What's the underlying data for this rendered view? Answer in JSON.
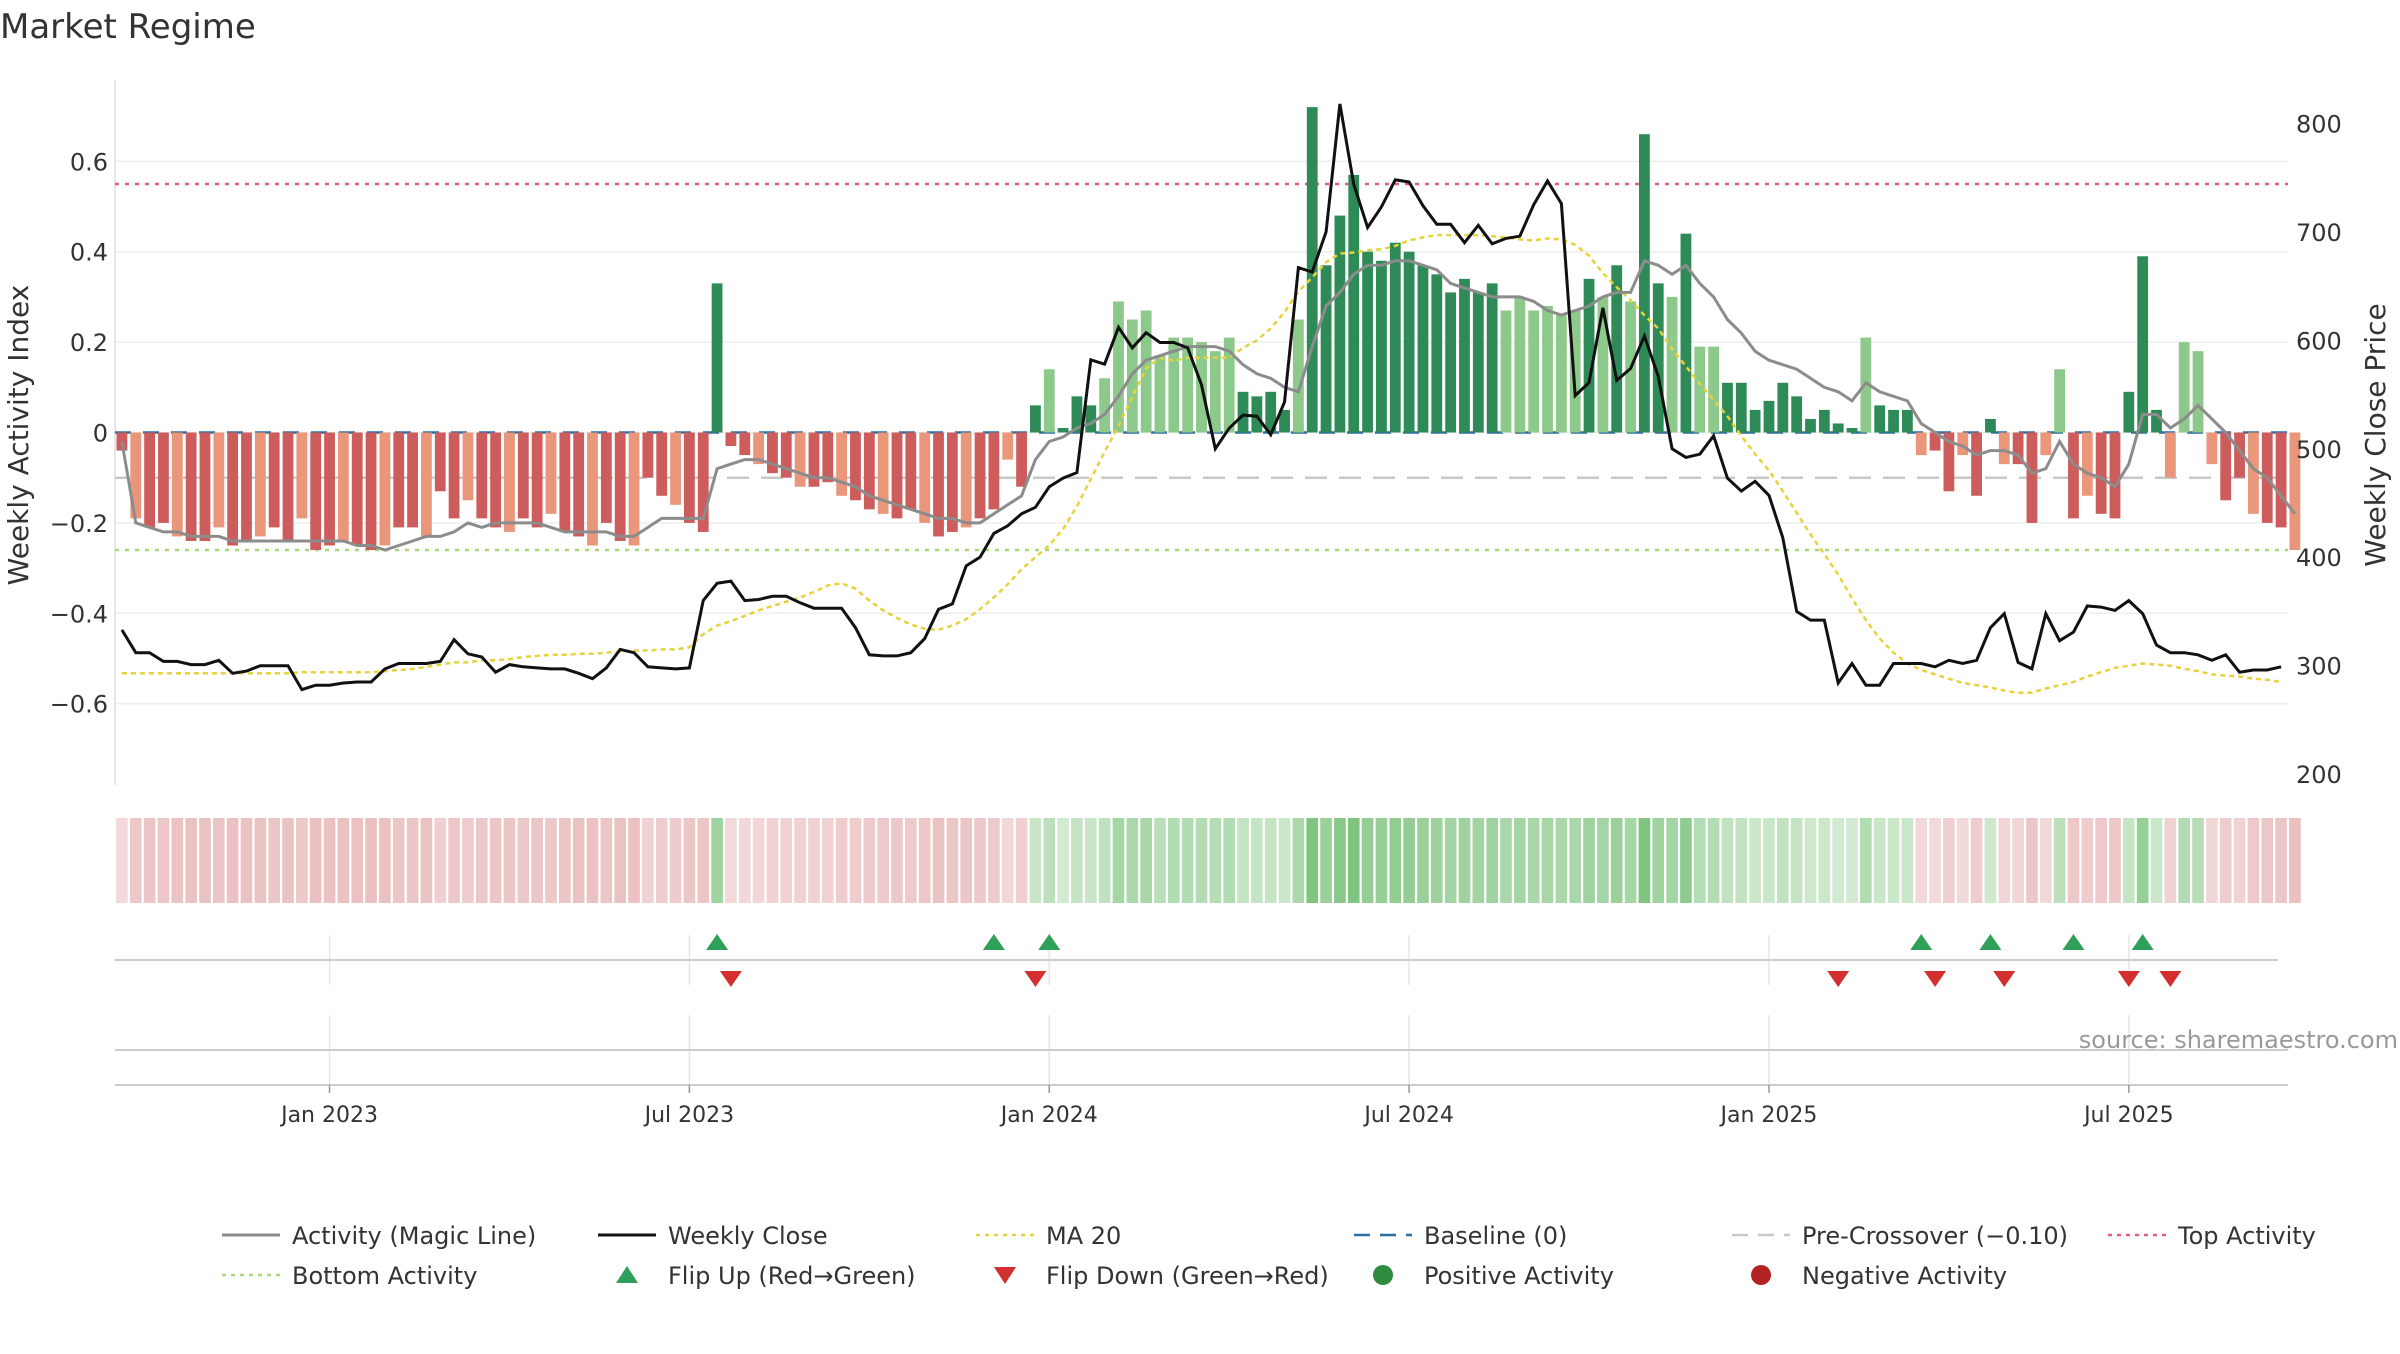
{
  "chart_data": {
    "type": "bar",
    "title": "Market Regime",
    "ylabel_left": "Weekly Activity Index",
    "ylabel_right": "Weekly Close Price",
    "source": "source: sharemaestro.com",
    "left_axis": {
      "ylim": [
        -0.78,
        0.78
      ],
      "ticks": [
        -0.6,
        -0.4,
        -0.2,
        0,
        0.2,
        0.4,
        0.6
      ],
      "tick_labels": [
        "−0.6",
        "−0.4",
        "−0.2",
        "0",
        "0.2",
        "0.4",
        "0.6"
      ]
    },
    "right_axis": {
      "ylim": [
        190,
        840
      ],
      "ticks": [
        200,
        300,
        400,
        500,
        600,
        700,
        800
      ],
      "tick_labels": [
        "200",
        "300",
        "400",
        "500",
        "600",
        "700",
        "800"
      ]
    },
    "x_ticks": [
      {
        "label": "Jan 2023",
        "week": 15
      },
      {
        "label": "Jul 2023",
        "week": 41
      },
      {
        "label": "Jan 2024",
        "week": 67
      },
      {
        "label": "Jul 2024",
        "week": 93
      },
      {
        "label": "Jan 2025",
        "week": 119
      },
      {
        "label": "Jul 2025",
        "week": 145
      }
    ],
    "week_count": 157,
    "reference_lines": {
      "top_activity": 0.55,
      "bottom_activity": -0.26,
      "pre_crossover": -0.1,
      "baseline": 0
    },
    "activity_bars": [
      -0.04,
      -0.19,
      -0.21,
      -0.2,
      -0.23,
      -0.24,
      -0.24,
      -0.21,
      -0.25,
      -0.24,
      -0.23,
      -0.21,
      -0.24,
      -0.19,
      -0.26,
      -0.25,
      -0.24,
      -0.25,
      -0.26,
      -0.25,
      -0.21,
      -0.21,
      -0.23,
      -0.13,
      -0.19,
      -0.15,
      -0.19,
      -0.21,
      -0.22,
      -0.19,
      -0.21,
      -0.18,
      -0.22,
      -0.23,
      -0.25,
      -0.2,
      -0.24,
      -0.25,
      -0.1,
      -0.14,
      -0.16,
      -0.2,
      -0.22,
      0.33,
      -0.03,
      -0.05,
      -0.07,
      -0.09,
      -0.1,
      -0.12,
      -0.12,
      -0.11,
      -0.14,
      -0.15,
      -0.17,
      -0.18,
      -0.19,
      -0.17,
      -0.2,
      -0.23,
      -0.22,
      -0.21,
      -0.19,
      -0.17,
      -0.06,
      -0.12,
      0.06,
      0.14,
      0.01,
      0.08,
      0.06,
      0.12,
      0.29,
      0.25,
      0.27,
      0.17,
      0.21,
      0.21,
      0.2,
      0.18,
      0.21,
      0.09,
      0.08,
      0.09,
      0.05,
      0.25,
      0.72,
      0.37,
      0.48,
      0.57,
      0.4,
      0.38,
      0.42,
      0.4,
      0.37,
      0.35,
      0.31,
      0.34,
      0.31,
      0.33,
      0.27,
      0.3,
      0.27,
      0.28,
      0.26,
      0.27,
      0.34,
      0.3,
      0.37,
      0.29,
      0.66,
      0.33,
      0.3,
      0.44,
      0.19,
      0.19,
      0.11,
      0.11,
      0.05,
      0.07,
      0.11,
      0.08,
      0.03,
      0.05,
      0.02,
      0.01,
      0.21,
      0.06,
      0.05,
      0.05,
      -0.05,
      -0.04,
      -0.13,
      -0.05,
      -0.14,
      0.03,
      -0.07,
      -0.07,
      -0.2,
      -0.05,
      0.14,
      -0.19,
      -0.14,
      -0.18,
      -0.19,
      0.09,
      0.39,
      0.05,
      -0.1,
      0.2,
      0.18,
      -0.07,
      -0.15,
      -0.1,
      -0.18,
      -0.2,
      -0.21,
      -0.26
    ],
    "magic_line": [
      -0.02,
      -0.2,
      -0.21,
      -0.22,
      -0.22,
      -0.23,
      -0.23,
      -0.23,
      -0.24,
      -0.24,
      -0.24,
      -0.24,
      -0.24,
      -0.24,
      -0.24,
      -0.24,
      -0.24,
      -0.25,
      -0.25,
      -0.26,
      -0.25,
      -0.24,
      -0.23,
      -0.23,
      -0.22,
      -0.2,
      -0.21,
      -0.2,
      -0.2,
      -0.2,
      -0.2,
      -0.21,
      -0.22,
      -0.22,
      -0.22,
      -0.22,
      -0.23,
      -0.23,
      -0.21,
      -0.19,
      -0.19,
      -0.19,
      -0.19,
      -0.08,
      -0.07,
      -0.06,
      -0.06,
      -0.07,
      -0.08,
      -0.09,
      -0.1,
      -0.1,
      -0.11,
      -0.12,
      -0.14,
      -0.15,
      -0.16,
      -0.17,
      -0.18,
      -0.19,
      -0.19,
      -0.2,
      -0.2,
      -0.18,
      -0.16,
      -0.14,
      -0.06,
      -0.02,
      -0.01,
      0.01,
      0.02,
      0.04,
      0.08,
      0.13,
      0.16,
      0.17,
      0.18,
      0.19,
      0.19,
      0.19,
      0.18,
      0.15,
      0.13,
      0.12,
      0.1,
      0.09,
      0.19,
      0.28,
      0.31,
      0.35,
      0.37,
      0.37,
      0.38,
      0.38,
      0.37,
      0.36,
      0.33,
      0.32,
      0.31,
      0.3,
      0.3,
      0.3,
      0.29,
      0.27,
      0.26,
      0.27,
      0.28,
      0.3,
      0.31,
      0.31,
      0.38,
      0.37,
      0.35,
      0.37,
      0.33,
      0.3,
      0.25,
      0.22,
      0.18,
      0.16,
      0.15,
      0.14,
      0.12,
      0.1,
      0.09,
      0.07,
      0.11,
      0.09,
      0.08,
      0.07,
      0.02,
      0.0,
      -0.02,
      -0.03,
      -0.05,
      -0.04,
      -0.04,
      -0.05,
      -0.09,
      -0.08,
      -0.02,
      -0.07,
      -0.09,
      -0.1,
      -0.12,
      -0.07,
      0.04,
      0.04,
      0.01,
      0.03,
      0.06,
      0.03,
      0.0,
      -0.04,
      -0.08,
      -0.1,
      -0.14,
      -0.18
    ],
    "weekly_close": [
      333,
      312,
      312,
      304,
      304,
      301,
      301,
      305,
      293,
      295,
      300,
      300,
      300,
      278,
      282,
      282,
      284,
      285,
      285,
      297,
      302,
      302,
      302,
      304,
      324,
      311,
      308,
      294,
      301,
      299,
      298,
      297,
      297,
      293,
      288,
      298,
      315,
      312,
      299,
      298,
      297,
      298,
      360,
      376,
      378,
      360,
      361,
      364,
      364,
      358,
      353,
      353,
      353,
      335,
      310,
      309,
      309,
      312,
      325,
      352,
      357,
      392,
      400,
      422,
      429,
      440,
      446,
      465,
      473,
      478,
      582,
      578,
      612,
      593,
      607,
      598,
      598,
      593,
      559,
      500,
      519,
      531,
      530,
      513,
      543,
      667,
      663,
      700,
      818,
      744,
      704,
      723,
      748,
      746,
      724,
      707,
      707,
      690,
      706,
      689,
      694,
      696,
      725,
      747,
      726,
      549,
      561,
      630,
      563,
      574,
      604,
      567,
      500,
      492,
      495,
      512,
      473,
      461,
      470,
      457,
      418,
      350,
      342,
      342,
      284,
      302,
      282,
      282,
      302,
      302,
      302,
      299,
      305,
      302,
      305,
      335,
      348,
      303,
      297,
      348,
      323,
      331,
      355,
      354,
      351,
      360,
      348,
      319,
      312,
      312,
      310,
      305,
      310,
      294,
      296,
      296,
      299
    ],
    "ma20": [
      293,
      293,
      293,
      293,
      293,
      293,
      293,
      293,
      293,
      293,
      293,
      293,
      293,
      294,
      294,
      294,
      294,
      294,
      294,
      295,
      296,
      297,
      299,
      301,
      303,
      303,
      305,
      305,
      306,
      308,
      309,
      310,
      310,
      311,
      311,
      312,
      313,
      314,
      314,
      315,
      315,
      317,
      329,
      337,
      341,
      346,
      351,
      355,
      359,
      363,
      368,
      374,
      376,
      371,
      360,
      351,
      344,
      338,
      334,
      333,
      337,
      343,
      352,
      363,
      375,
      389,
      400,
      411,
      426,
      447,
      472,
      497,
      521,
      548,
      574,
      584,
      581,
      584,
      584,
      584,
      584,
      593,
      600,
      611,
      626,
      645,
      658,
      672,
      680,
      681,
      683,
      684,
      687,
      692,
      695,
      697,
      697,
      697,
      697,
      696,
      695,
      693,
      692,
      694,
      693,
      688,
      678,
      662,
      649,
      637,
      623,
      611,
      592,
      576,
      560,
      545,
      530,
      512,
      495,
      480,
      461,
      441,
      421,
      403,
      384,
      362,
      342,
      325,
      312,
      302,
      296,
      292,
      288,
      284,
      282,
      280,
      277,
      275,
      275,
      279,
      282,
      285,
      290,
      294,
      298,
      300,
      302,
      301,
      300,
      297,
      295,
      292,
      291,
      290,
      288,
      287,
      285
    ],
    "activity_markers": [
      {
        "week": 43,
        "dir": "up"
      },
      {
        "week": 44,
        "dir": "down"
      },
      {
        "week": 63,
        "dir": "up"
      },
      {
        "week": 66,
        "dir": "down"
      },
      {
        "week": 67,
        "dir": "up"
      },
      {
        "week": 124,
        "dir": "down"
      },
      {
        "week": 130,
        "dir": "up"
      },
      {
        "week": 131,
        "dir": "down"
      },
      {
        "week": 135,
        "dir": "up"
      },
      {
        "week": 136,
        "dir": "down"
      },
      {
        "week": 141,
        "dir": "up"
      },
      {
        "week": 146,
        "dir": "up"
      },
      {
        "week": 145,
        "dir": "down"
      },
      {
        "week": 148,
        "dir": "down"
      }
    ],
    "legend_position": "bottom",
    "grid": true
  },
  "legend": [
    {
      "key": "activity_line",
      "label": "Activity (Magic Line)",
      "symbol": "line",
      "color": "#8c8c8c"
    },
    {
      "key": "weekly_close",
      "label": "Weekly Close",
      "symbol": "line",
      "color": "#111111"
    },
    {
      "key": "ma20",
      "label": "MA 20",
      "symbol": "dotted",
      "color": "#e6d23a"
    },
    {
      "key": "baseline",
      "label": "Baseline (0)",
      "symbol": "dashed",
      "color": "#2f6ea3"
    },
    {
      "key": "pre_crossover",
      "label": "Pre-Crossover (−0.10)",
      "symbol": "dashed",
      "color": "#c8c8c8"
    },
    {
      "key": "top_activity",
      "label": "Top Activity",
      "symbol": "dotted",
      "color": "#e0607a"
    },
    {
      "key": "bottom_activity",
      "label": "Bottom Activity",
      "symbol": "dotted",
      "color": "#a8d67a"
    },
    {
      "key": "flip_up",
      "label": "Flip Up (Red→Green)",
      "symbol": "triangle-up",
      "color": "#2ea05a"
    },
    {
      "key": "flip_down",
      "label": "Flip Down (Green→Red)",
      "symbol": "triangle-down",
      "color": "#d32f2f"
    },
    {
      "key": "positive_activity",
      "label": "Positive Activity",
      "symbol": "circle",
      "color": "#2e8b40"
    },
    {
      "key": "negative_activity",
      "label": "Negative Activity",
      "symbol": "circle",
      "color": "#b22222"
    }
  ],
  "colors": {
    "pos_strong": "#2e8b57",
    "pos_light": "#8cc98a",
    "neg_strong": "#cd5c5c",
    "neg_light": "#e9967a",
    "regime_pos": "#7fc47f",
    "regime_neg": "#e0a0a0"
  }
}
